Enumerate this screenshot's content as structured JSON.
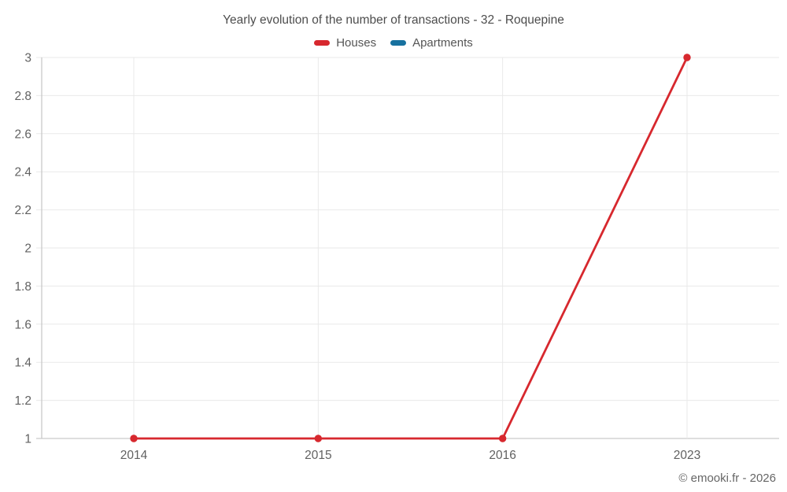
{
  "title": "Yearly evolution of the number of transactions - 32 - Roquepine",
  "legend": [
    {
      "label": "Houses",
      "color": "#d7282e"
    },
    {
      "label": "Apartments",
      "color": "#17719f"
    }
  ],
  "footer": "© emooki.fr - 2026",
  "colors": {
    "grid": "#e9e9e9",
    "axis": "#c9c9c9",
    "tick_text": "#616161",
    "title_text": "#4d4d4d",
    "footer_text": "#666666",
    "background": "#ffffff"
  },
  "chart_data": {
    "type": "line",
    "title": "Yearly evolution of the number of transactions - 32 - Roquepine",
    "categories": [
      "2014",
      "2015",
      "2016",
      "2023"
    ],
    "series": [
      {
        "name": "Houses",
        "color": "#d7282e",
        "values": [
          1,
          1,
          1,
          3
        ]
      },
      {
        "name": "Apartments",
        "color": "#17719f",
        "values": []
      }
    ],
    "xlabel": "",
    "ylabel": "",
    "ylim": [
      1,
      3
    ],
    "ytick_labels": [
      "1",
      "1.2",
      "1.4",
      "1.6",
      "1.8",
      "2",
      "2.2",
      "2.4",
      "2.6",
      "2.8",
      "3"
    ],
    "grid": true,
    "legend_position": "top",
    "marker": "circle"
  }
}
